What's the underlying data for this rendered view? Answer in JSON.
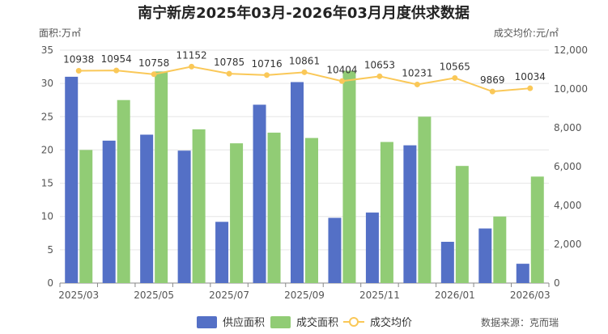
{
  "chart_data": {
    "type": "bar+line",
    "title": "南宁新房2025年03月-2026年03月月度供求数据",
    "left_axis_label": "面积:万㎡",
    "right_axis_label": "成交均价:元/㎡",
    "left_ylim": [
      0,
      35
    ],
    "left_ticks": [
      "0",
      "5",
      "10",
      "15",
      "20",
      "25",
      "30",
      "35"
    ],
    "right_ylim": [
      0,
      12000
    ],
    "right_ticks": [
      "0",
      "2,000",
      "4,000",
      "6,000",
      "8,000",
      "10,000",
      "12,000"
    ],
    "months": [
      "2025/03",
      "2025/04",
      "2025/05",
      "2025/06",
      "2025/07",
      "2025/08",
      "2025/09",
      "2025/10",
      "2025/11",
      "2025/12",
      "2026/01",
      "2026/02",
      "2026/03"
    ],
    "x_tick_labels": [
      "2025/03",
      "",
      "2025/05",
      "",
      "2025/07",
      "",
      "2025/09",
      "",
      "2025/11",
      "",
      "2026/01",
      "",
      "2026/03"
    ],
    "series": [
      {
        "name": "供应面积",
        "kind": "bar",
        "axis": "left",
        "color": "#5470c6",
        "values": [
          31.0,
          21.4,
          22.3,
          19.9,
          9.2,
          26.8,
          30.2,
          9.8,
          10.6,
          20.7,
          6.2,
          8.2,
          2.9
        ]
      },
      {
        "name": "成交面积",
        "kind": "bar",
        "axis": "left",
        "color": "#91cc75",
        "values": [
          20.0,
          27.5,
          31.8,
          23.1,
          21.0,
          22.6,
          21.8,
          31.9,
          21.2,
          25.0,
          17.6,
          10.0,
          16.0
        ]
      },
      {
        "name": "成交均价",
        "kind": "line",
        "axis": "right",
        "color": "#fac858",
        "values": [
          10938,
          10954,
          10758,
          11152,
          10785,
          10716,
          10861,
          10404,
          10653,
          10231,
          10565,
          9869,
          10034
        ],
        "labels": [
          "10938",
          "10954",
          "10758",
          "11152",
          "10785",
          "10716",
          "10861",
          "10404",
          "10653",
          "10231",
          "10565",
          "9869",
          "10034"
        ]
      }
    ],
    "legend": [
      "供应面积",
      "成交面积",
      "成交均价"
    ],
    "source": "数据来源：克而瑞"
  }
}
